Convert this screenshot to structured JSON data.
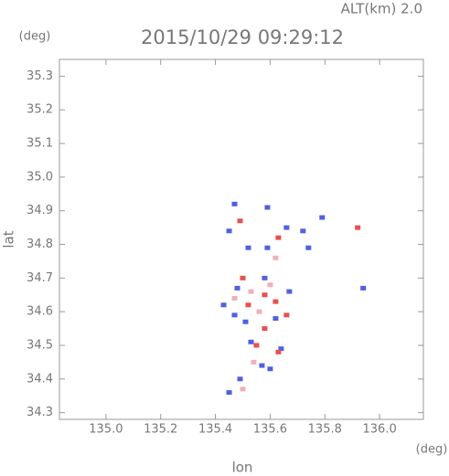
{
  "chart_data": {
    "type": "scatter",
    "title": "2015/10/29 09:29:12",
    "annotation": "ALT(km) 2.0",
    "xlabel": "lon",
    "ylabel": "lat",
    "xunit": "(deg)",
    "yunit": "(deg)",
    "xlim": [
      134.83,
      136.16
    ],
    "ylim": [
      34.28,
      35.35
    ],
    "xticks": [
      {
        "value": 135.0,
        "label": "135.0"
      },
      135.2,
      135.4,
      135.6,
      135.8,
      {
        "value": 136.0,
        "label": "136.0"
      }
    ],
    "yticks": [
      34.3,
      34.4,
      34.5,
      34.6,
      34.7,
      34.8,
      34.9,
      {
        "value": 35.0,
        "label": "35.0"
      },
      35.1,
      35.2,
      35.3
    ],
    "x": [
      135.47,
      135.59,
      135.45,
      135.52,
      135.66,
      135.72,
      135.79,
      135.74,
      135.59,
      135.48,
      135.43,
      135.51,
      135.62,
      135.67,
      135.53,
      135.64,
      135.57,
      135.49,
      135.6,
      135.45,
      135.94,
      135.58,
      135.47,
      135.49,
      135.92,
      135.63,
      135.58,
      135.62,
      135.52,
      135.55,
      135.63,
      135.58,
      135.5,
      135.66,
      135.53,
      135.56,
      135.6,
      135.54,
      135.5,
      135.62,
      135.47
    ],
    "values": [
      34.92,
      34.91,
      34.84,
      34.79,
      34.85,
      34.84,
      34.88,
      34.79,
      34.79,
      34.67,
      34.62,
      34.57,
      34.58,
      34.66,
      34.51,
      34.49,
      34.44,
      34.4,
      34.43,
      34.36,
      34.67,
      34.7,
      34.59,
      34.87,
      34.85,
      34.82,
      34.65,
      34.63,
      34.62,
      34.5,
      34.48,
      34.55,
      34.7,
      34.59,
      34.66,
      34.6,
      34.68,
      34.45,
      34.37,
      34.76,
      34.64
    ],
    "colors": [
      "#5060e0",
      "#5060e0",
      "#5060e0",
      "#5060e0",
      "#5060e0",
      "#5060e0",
      "#5060e0",
      "#5060e0",
      "#5060e0",
      "#5060e0",
      "#5060e0",
      "#5060e0",
      "#5060e0",
      "#5060e0",
      "#5060e0",
      "#5060e0",
      "#5060e0",
      "#5060e0",
      "#5060e0",
      "#5060e0",
      "#5060e0",
      "#5060e0",
      "#5060e0",
      "#e85050",
      "#e85050",
      "#e85050",
      "#e85050",
      "#e85050",
      "#e85050",
      "#e85050",
      "#e85050",
      "#e85050",
      "#e85050",
      "#e85050",
      "#f0b0b8",
      "#f0b0b8",
      "#f0b0b8",
      "#f0b0b8",
      "#f0b0b8",
      "#f0b0b8",
      "#f0b0b8"
    ]
  }
}
